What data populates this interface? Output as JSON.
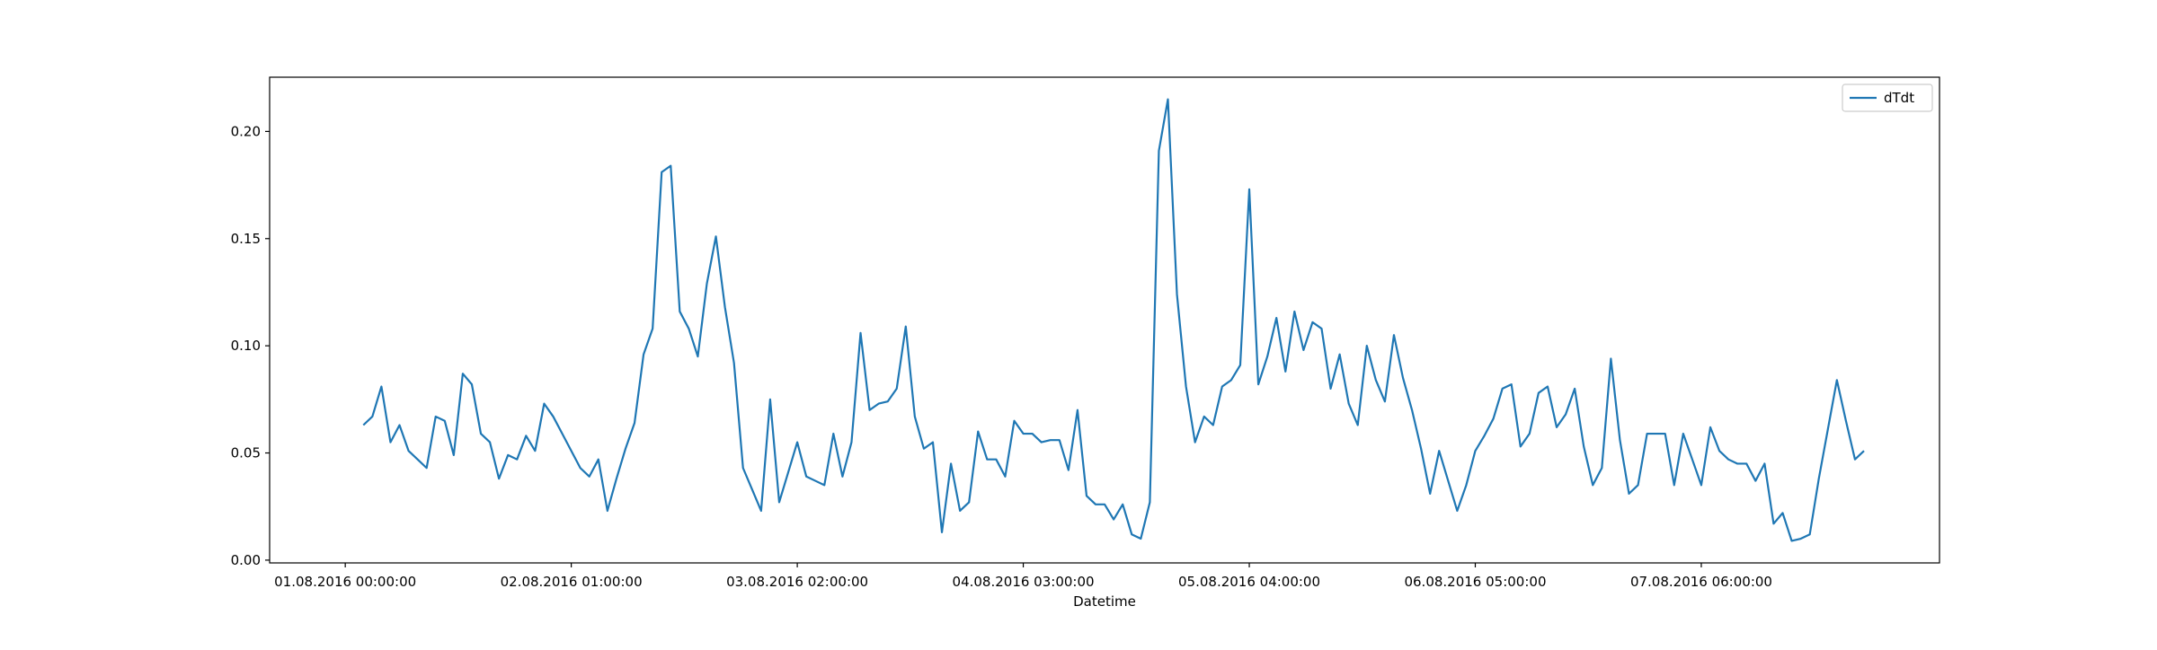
{
  "chart_data": {
    "type": "line",
    "xlabel": "Datetime",
    "x": [
      "01.08.2016 02:00:00",
      "01.08.2016 03:00:00",
      "01.08.2016 04:00:00",
      "01.08.2016 05:00:00",
      "01.08.2016 06:00:00",
      "01.08.2016 07:00:00",
      "01.08.2016 08:00:00",
      "01.08.2016 09:00:00",
      "01.08.2016 10:00:00",
      "01.08.2016 11:00:00",
      "01.08.2016 12:00:00",
      "01.08.2016 13:00:00",
      "01.08.2016 14:00:00",
      "01.08.2016 15:00:00",
      "01.08.2016 16:00:00",
      "01.08.2016 17:00:00",
      "01.08.2016 18:00:00",
      "01.08.2016 19:00:00",
      "01.08.2016 20:00:00",
      "01.08.2016 21:00:00",
      "01.08.2016 22:00:00",
      "01.08.2016 23:00:00",
      "02.08.2016 00:00:00",
      "02.08.2016 01:00:00",
      "02.08.2016 02:00:00",
      "02.08.2016 03:00:00",
      "02.08.2016 04:00:00",
      "02.08.2016 05:00:00",
      "02.08.2016 06:00:00",
      "02.08.2016 07:00:00",
      "02.08.2016 08:00:00",
      "02.08.2016 09:00:00",
      "02.08.2016 10:00:00",
      "02.08.2016 11:00:00",
      "02.08.2016 12:00:00",
      "02.08.2016 13:00:00",
      "02.08.2016 14:00:00",
      "02.08.2016 15:00:00",
      "02.08.2016 16:00:00",
      "02.08.2016 17:00:00",
      "02.08.2016 18:00:00",
      "02.08.2016 19:00:00",
      "02.08.2016 20:00:00",
      "02.08.2016 21:00:00",
      "02.08.2016 22:00:00",
      "02.08.2016 23:00:00",
      "03.08.2016 00:00:00",
      "03.08.2016 01:00:00",
      "03.08.2016 02:00:00",
      "03.08.2016 03:00:00",
      "03.08.2016 04:00:00",
      "03.08.2016 05:00:00",
      "03.08.2016 06:00:00",
      "03.08.2016 07:00:00",
      "03.08.2016 08:00:00",
      "03.08.2016 09:00:00",
      "03.08.2016 10:00:00",
      "03.08.2016 11:00:00",
      "03.08.2016 12:00:00",
      "03.08.2016 13:00:00",
      "03.08.2016 14:00:00",
      "03.08.2016 15:00:00",
      "03.08.2016 16:00:00",
      "03.08.2016 17:00:00",
      "03.08.2016 18:00:00",
      "03.08.2016 19:00:00",
      "03.08.2016 20:00:00",
      "03.08.2016 21:00:00",
      "03.08.2016 22:00:00",
      "03.08.2016 23:00:00",
      "04.08.2016 00:00:00",
      "04.08.2016 01:00:00",
      "04.08.2016 02:00:00",
      "04.08.2016 03:00:00",
      "04.08.2016 04:00:00",
      "04.08.2016 05:00:00",
      "04.08.2016 06:00:00",
      "04.08.2016 07:00:00",
      "04.08.2016 08:00:00",
      "04.08.2016 09:00:00",
      "04.08.2016 10:00:00",
      "04.08.2016 11:00:00",
      "04.08.2016 12:00:00",
      "04.08.2016 13:00:00",
      "04.08.2016 14:00:00",
      "04.08.2016 15:00:00",
      "04.08.2016 16:00:00",
      "04.08.2016 17:00:00",
      "04.08.2016 18:00:00",
      "04.08.2016 19:00:00",
      "04.08.2016 20:00:00",
      "04.08.2016 21:00:00",
      "04.08.2016 22:00:00",
      "04.08.2016 23:00:00",
      "05.08.2016 00:00:00",
      "05.08.2016 01:00:00",
      "05.08.2016 02:00:00",
      "05.08.2016 03:00:00",
      "05.08.2016 04:00:00",
      "05.08.2016 05:00:00",
      "05.08.2016 06:00:00",
      "05.08.2016 07:00:00",
      "05.08.2016 08:00:00",
      "05.08.2016 09:00:00",
      "05.08.2016 10:00:00",
      "05.08.2016 11:00:00",
      "05.08.2016 12:00:00",
      "05.08.2016 13:00:00",
      "05.08.2016 14:00:00",
      "05.08.2016 15:00:00",
      "05.08.2016 16:00:00",
      "05.08.2016 17:00:00",
      "05.08.2016 18:00:00",
      "05.08.2016 19:00:00",
      "05.08.2016 20:00:00",
      "05.08.2016 21:00:00",
      "05.08.2016 22:00:00",
      "05.08.2016 23:00:00",
      "06.08.2016 00:00:00",
      "06.08.2016 01:00:00",
      "06.08.2016 02:00:00",
      "06.08.2016 03:00:00",
      "06.08.2016 04:00:00",
      "06.08.2016 05:00:00",
      "06.08.2016 06:00:00",
      "06.08.2016 07:00:00",
      "06.08.2016 08:00:00",
      "06.08.2016 09:00:00",
      "06.08.2016 10:00:00",
      "06.08.2016 11:00:00",
      "06.08.2016 12:00:00",
      "06.08.2016 13:00:00",
      "06.08.2016 14:00:00",
      "06.08.2016 15:00:00",
      "06.08.2016 16:00:00",
      "06.08.2016 17:00:00",
      "06.08.2016 18:00:00",
      "06.08.2016 19:00:00",
      "06.08.2016 20:00:00",
      "06.08.2016 21:00:00",
      "06.08.2016 22:00:00",
      "06.08.2016 23:00:00",
      "07.08.2016 00:00:00",
      "07.08.2016 01:00:00",
      "07.08.2016 02:00:00",
      "07.08.2016 03:00:00",
      "07.08.2016 04:00:00",
      "07.08.2016 05:00:00",
      "07.08.2016 06:00:00",
      "07.08.2016 07:00:00",
      "07.08.2016 08:00:00",
      "07.08.2016 09:00:00",
      "07.08.2016 10:00:00",
      "07.08.2016 11:00:00",
      "07.08.2016 12:00:00",
      "07.08.2016 13:00:00",
      "07.08.2016 14:00:00",
      "07.08.2016 15:00:00",
      "07.08.2016 16:00:00",
      "07.08.2016 17:00:00",
      "07.08.2016 18:00:00",
      "07.08.2016 19:00:00",
      "07.08.2016 20:00:00",
      "07.08.2016 21:00:00",
      "07.08.2016 22:00:00",
      "07.08.2016 23:00:00",
      "08.08.2016 00:00:00"
    ],
    "series": [
      {
        "name": "dTdt",
        "color": "#1f77b4",
        "values": [
          0.063,
          0.067,
          0.081,
          0.055,
          0.063,
          0.051,
          0.047,
          0.043,
          0.067,
          0.065,
          0.049,
          0.087,
          0.082,
          0.059,
          0.055,
          0.038,
          0.049,
          0.047,
          0.058,
          0.051,
          0.073,
          0.067,
          0.059,
          0.051,
          0.043,
          0.039,
          0.047,
          0.023,
          0.038,
          0.052,
          0.064,
          0.096,
          0.108,
          0.181,
          0.184,
          0.116,
          0.108,
          0.095,
          0.129,
          0.151,
          0.118,
          0.092,
          0.043,
          0.033,
          0.023,
          0.075,
          0.027,
          0.041,
          0.055,
          0.039,
          0.037,
          0.035,
          0.059,
          0.039,
          0.055,
          0.106,
          0.07,
          0.073,
          0.074,
          0.08,
          0.109,
          0.067,
          0.052,
          0.055,
          0.013,
          0.045,
          0.023,
          0.027,
          0.06,
          0.047,
          0.047,
          0.039,
          0.065,
          0.059,
          0.059,
          0.055,
          0.056,
          0.056,
          0.042,
          0.07,
          0.03,
          0.026,
          0.026,
          0.019,
          0.026,
          0.012,
          0.01,
          0.027,
          0.191,
          0.215,
          0.124,
          0.081,
          0.055,
          0.067,
          0.063,
          0.081,
          0.084,
          0.091,
          0.173,
          0.082,
          0.095,
          0.113,
          0.088,
          0.116,
          0.098,
          0.111,
          0.108,
          0.08,
          0.096,
          0.073,
          0.063,
          0.1,
          0.084,
          0.074,
          0.105,
          0.085,
          0.07,
          0.052,
          0.031,
          0.051,
          0.037,
          0.023,
          0.035,
          0.051,
          0.058,
          0.066,
          0.08,
          0.082,
          0.053,
          0.059,
          0.078,
          0.081,
          0.062,
          0.068,
          0.08,
          0.053,
          0.035,
          0.043,
          0.094,
          0.056,
          0.031,
          0.035,
          0.059,
          0.059,
          0.059,
          0.035,
          0.059,
          0.047,
          0.035,
          0.062,
          0.051,
          0.047,
          0.045,
          0.045,
          0.037,
          0.045,
          0.017,
          0.022,
          0.009,
          0.01,
          0.012,
          0.038,
          0.061,
          0.084,
          0.065,
          0.047,
          0.051
        ]
      }
    ],
    "xlim": [
      "31.07.2016 15:38:00",
      "08.08.2016 08:21:00"
    ],
    "xticks": [
      "01.08.2016 00:00:00",
      "02.08.2016 01:00:00",
      "03.08.2016 02:00:00",
      "04.08.2016 03:00:00",
      "05.08.2016 04:00:00",
      "06.08.2016 05:00:00",
      "07.08.2016 06:00:00"
    ],
    "ylim": [
      -0.0013,
      0.2253
    ],
    "yticks": [
      {
        "value": 0,
        "label": "0.00"
      },
      {
        "value": 0.05,
        "label": "0.05"
      },
      {
        "value": 0.1,
        "label": "0.10"
      },
      {
        "value": 0.15,
        "label": "0.15"
      },
      {
        "value": 0.2,
        "label": "0.20"
      }
    ],
    "grid": false,
    "legend": "upper right"
  }
}
